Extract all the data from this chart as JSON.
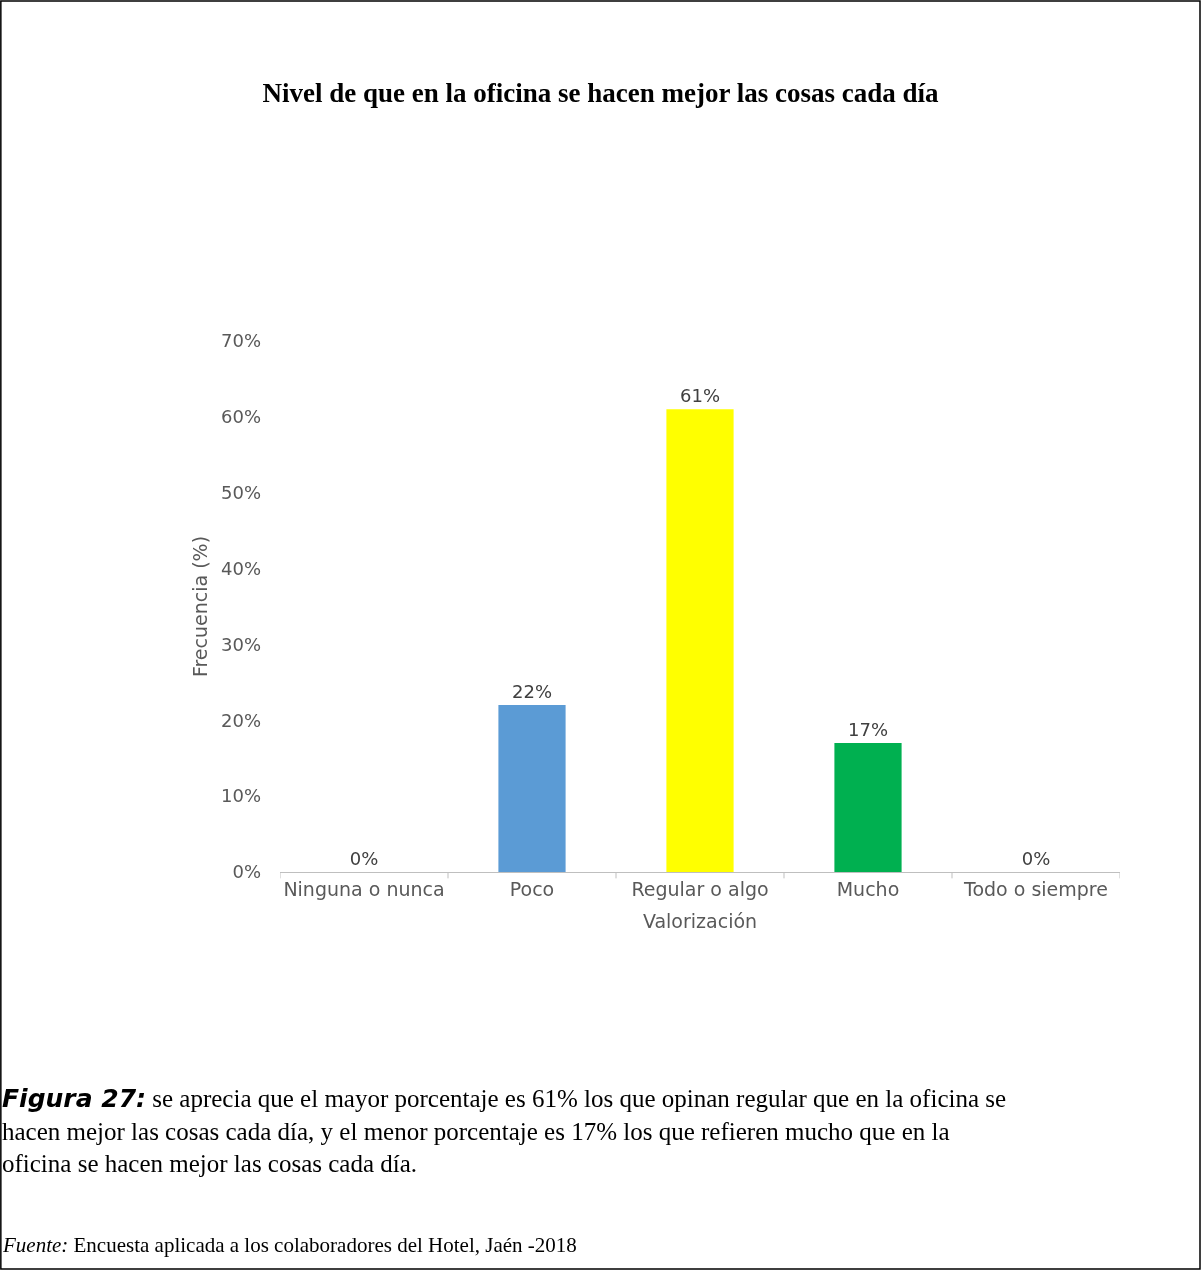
{
  "chart_data": {
    "type": "bar",
    "title": "Nivel de que en la oficina se hacen mejor las cosas cada día",
    "xlabel": "Valorización",
    "ylabel": "Frecuencia (%)",
    "categories": [
      "Ninguna o nunca",
      "Poco",
      "Regular o algo",
      "Mucho",
      "Todo o siempre"
    ],
    "values": [
      0,
      22,
      61,
      17,
      0
    ],
    "colors": [
      "#5b9bd5",
      "#5b9bd5",
      "#ffff00",
      "#00b050",
      "#5b9bd5"
    ],
    "value_labels": [
      "0%",
      "22%",
      "61%",
      "17%",
      "0%"
    ],
    "ylim": [
      0,
      70
    ],
    "yticks": [
      {
        "value": 0,
        "label": "0%"
      },
      {
        "value": 10,
        "label": "10%"
      },
      {
        "value": 20,
        "label": "20%"
      },
      {
        "value": 30,
        "label": "30%"
      },
      {
        "value": 40,
        "label": "40%"
      },
      {
        "value": 50,
        "label": "50%"
      },
      {
        "value": 60,
        "label": "60%"
      },
      {
        "value": 70,
        "label": "70%"
      }
    ],
    "annotations": [
      "Figura 27: se aprecia que el mayor porcentaje es 61% los que opinan regular que en la oficina se hacen mejor las cosas cada día, y el menor porcentaje es 17% los que refieren mucho que en la oficina se hacen mejor las cosas cada día.",
      "Fuente: Encuesta aplicada a los colaboradores del Hotel, Jaén -2018"
    ]
  }
}
